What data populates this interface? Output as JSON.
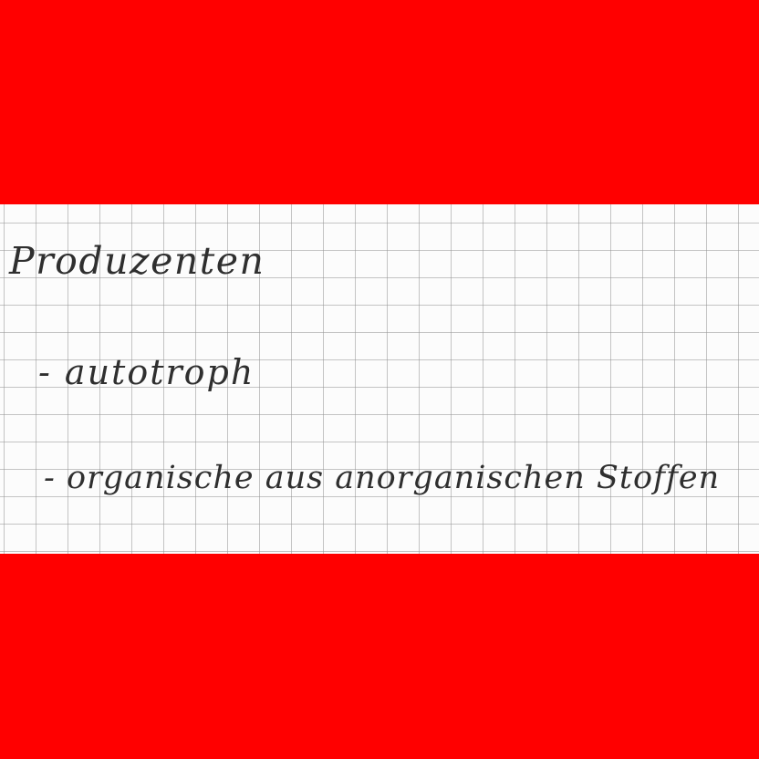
{
  "page": {
    "background_color": "#ff0000",
    "paper_color": "#fcfcfc",
    "grid_color": "#969696",
    "ink_color": "#2f2f2f"
  },
  "note": {
    "heading": "Produzenten",
    "items": [
      "- autotroph",
      "- organische aus anorganischen Stoffen"
    ]
  }
}
